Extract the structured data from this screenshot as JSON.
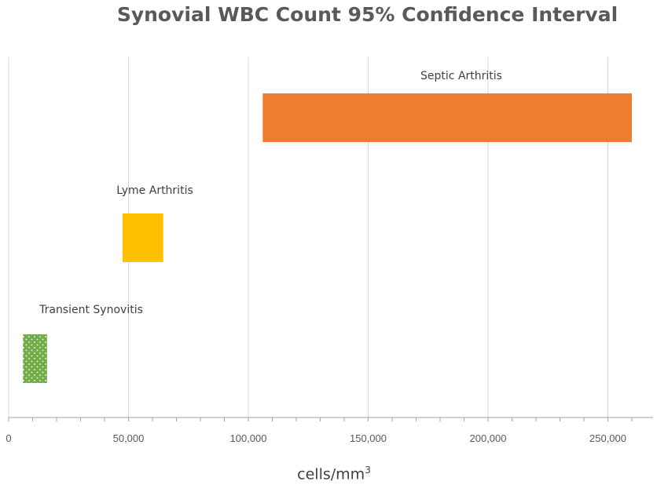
{
  "chart_data": {
    "type": "bar",
    "subtype": "floating-horizontal-range",
    "title": "Synovial WBC Count 95% Confidence Interval",
    "xlabel": "cells/mm",
    "xlabel_superscript": "3",
    "ylabel": "",
    "xlim": [
      0,
      270000
    ],
    "xticks": [
      0,
      50000,
      100000,
      150000,
      200000,
      250000
    ],
    "xtick_labels": [
      "0",
      "50,000",
      "100,000",
      "150,000",
      "200,000",
      "250,000"
    ],
    "minor_tick_step": 10000,
    "grid": "vertical",
    "legend": "none",
    "categories": [
      "Septic Arthritis",
      "Lyme Arthritis",
      "Transient Synovitis"
    ],
    "series": [
      {
        "values": [
          {
            "label": "Septic Arthritis",
            "low": 106000,
            "high": 260000,
            "color": "#ED7D31",
            "pattern": "solid"
          },
          {
            "label": "Lyme Arthritis",
            "low": 47500,
            "high": 64500,
            "color": "#FFC000",
            "pattern": "solid"
          },
          {
            "label": "Transient Synovitis",
            "low": 6000,
            "high": 16000,
            "color": "#70AD47",
            "pattern": "dotted"
          }
        ]
      }
    ]
  }
}
